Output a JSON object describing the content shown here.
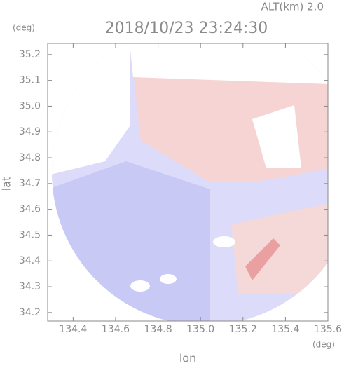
{
  "chart_data": {
    "type": "radar-field",
    "title": "2018/10/23 23:24:30",
    "altitude_label": "ALT(km) 2.0",
    "y_unit": "(deg)",
    "x_unit": "(deg)",
    "x_label": "lon",
    "y_label": "lat",
    "xlim": [
      134.28,
      135.6
    ],
    "ylim": [
      34.167,
      35.243
    ],
    "xticks": [
      134.4,
      134.6,
      134.8,
      {
        "value": 135,
        "label": "135.0"
      },
      135.2,
      135.4,
      135.6
    ],
    "yticks": [
      34.2,
      34.3,
      34.4,
      34.5,
      34.6,
      34.7,
      34.8,
      34.9,
      {
        "value": 35,
        "label": "35.0"
      },
      35.1,
      35.2
    ]
  }
}
